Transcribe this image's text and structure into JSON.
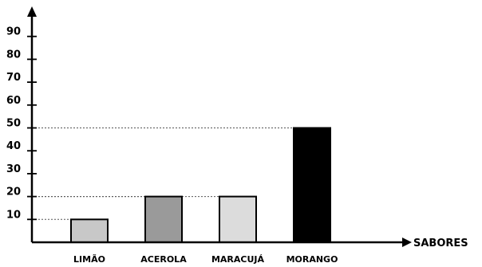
{
  "chart_data": {
    "type": "bar",
    "title": "",
    "xlabel": "SABORES",
    "ylabel": "",
    "categories": [
      "LIMÃO",
      "ACEROLA",
      "MARACUJÁ",
      "MORANGO"
    ],
    "values": [
      10,
      20,
      20,
      50
    ],
    "bar_colors": [
      "#c8c8c8",
      "#9a9a9a",
      "#dcdcdc",
      "#000000"
    ],
    "yticks": [
      10,
      20,
      30,
      40,
      50,
      60,
      70,
      80,
      90
    ],
    "ylim": [
      0,
      100
    ],
    "grid": false,
    "dashed_reference_lines": true,
    "legend": "none"
  }
}
